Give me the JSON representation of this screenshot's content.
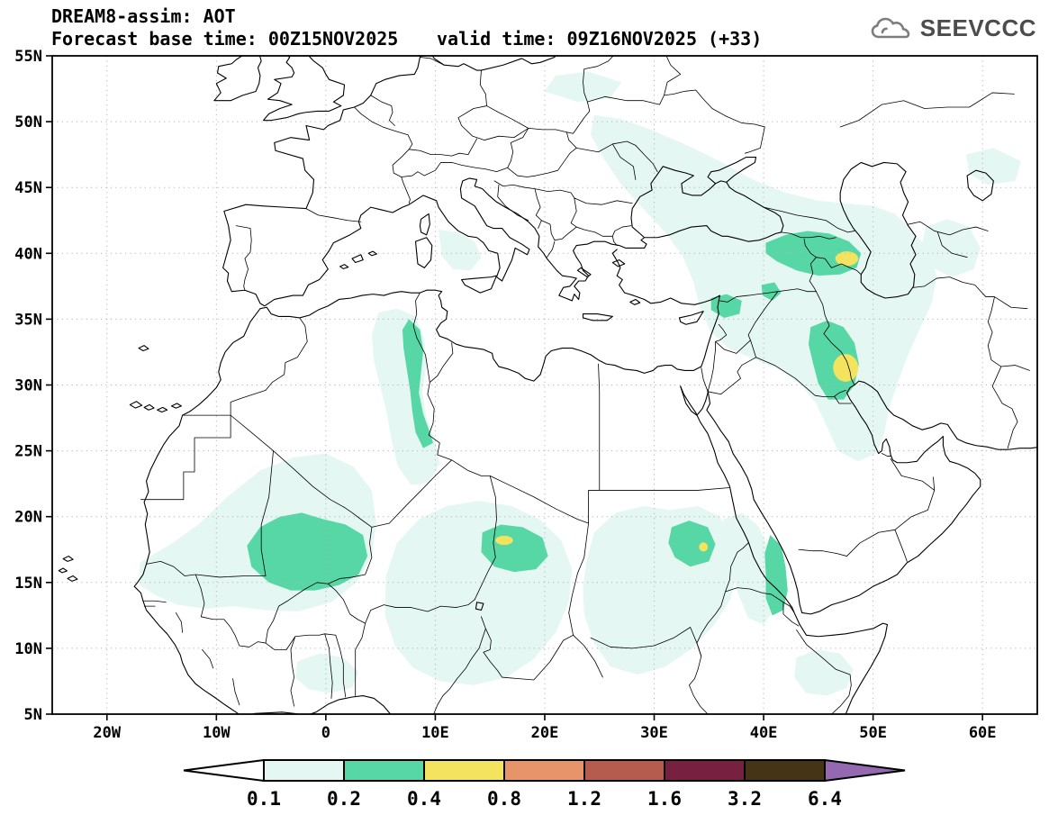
{
  "header": {
    "title": "DREAM8-assim: AOT",
    "base_time_text": "Forecast base time: 00Z15NOV2025",
    "valid_time_text": "valid time: 09Z16NOV2025 (+33)",
    "logo_text": "SEEVCCC"
  },
  "axes": {
    "lat_labels": [
      "55N",
      "50N",
      "45N",
      "40N",
      "35N",
      "30N",
      "25N",
      "20N",
      "15N",
      "10N",
      "5N"
    ],
    "lon_labels": [
      "20W",
      "10W",
      "0",
      "10E",
      "20E",
      "30E",
      "40E",
      "50E",
      "60E"
    ]
  },
  "colorbar": {
    "labels": [
      "0.1",
      "0.2",
      "0.4",
      "0.8",
      "1.2",
      "1.6",
      "3.2",
      "6.4"
    ],
    "segment_colors": [
      "#e4f7f2",
      "#57d7a6",
      "#f3e35f",
      "#e8946b",
      "#b65c4e",
      "#77203f",
      "#453416"
    ],
    "below_min_color": "#ffffff",
    "above_max_color": "#9469b1"
  },
  "chart_data": {
    "type": "filled-contour-map",
    "title": "DREAM8-assim: AOT",
    "variable": "AOT",
    "model": "DREAM8-assim",
    "forecast_base_time": "00Z15NOV2025",
    "valid_time": "09Z16NOV2025",
    "forecast_offset_hours": 33,
    "lon_range_deg": [
      -25,
      65
    ],
    "lat_range_deg": [
      5,
      55
    ],
    "contour_levels": [
      0.1,
      0.2,
      0.4,
      0.8,
      1.2,
      1.6,
      3.2,
      6.4
    ],
    "legend_position": "bottom",
    "shaded_features": [
      {
        "region": "West Sahel (Mauritania/Mali)",
        "approx_center_lonlat": [
          -2,
          17
        ],
        "peak_band": "0.2-0.4"
      },
      {
        "region": "Central Algeria band",
        "approx_center_lonlat": [
          8,
          30
        ],
        "peak_band": "0.2-0.4"
      },
      {
        "region": "Chad / Bodele",
        "approx_center_lonlat": [
          17,
          17.5
        ],
        "peak_band": "0.4-0.8"
      },
      {
        "region": "Sudan",
        "approx_center_lonlat": [
          33.5,
          17.8
        ],
        "peak_band": "0.4-0.8"
      },
      {
        "region": "Southern Red Sea coast",
        "approx_center_lonlat": [
          41,
          15.5
        ],
        "peak_band": "0.2-0.4"
      },
      {
        "region": "Caucasus / Azerbaijan",
        "approx_center_lonlat": [
          47.6,
          39.6
        ],
        "peak_band": "0.4-0.8"
      },
      {
        "region": "Mesopotamia / Iraq",
        "approx_center_lonlat": [
          47.5,
          31.3
        ],
        "peak_band": "0.4-0.8"
      },
      {
        "region": "Anatolia - Black Sea - Caspian corridor",
        "approx_center_lonlat": [
          40,
          43
        ],
        "peak_band": "0.1-0.2"
      },
      {
        "region": "Horn of Africa",
        "approx_center_lonlat": [
          45.5,
          8
        ],
        "peak_band": "0.1-0.2"
      },
      {
        "region": "Tyrrhenian Sea",
        "approx_center_lonlat": [
          12,
          40.5
        ],
        "peak_band": "0.1-0.2"
      }
    ]
  }
}
